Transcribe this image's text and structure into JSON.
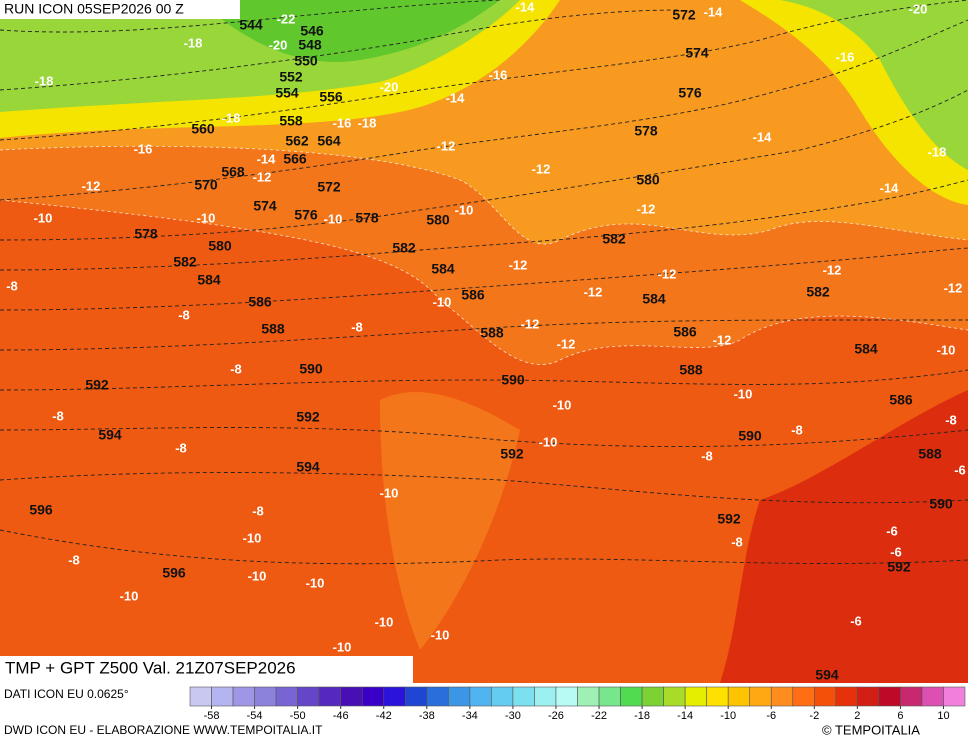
{
  "header": {
    "run": "RUN ICON 05SEP2026 00 Z",
    "title": "TMP + GPT Z500 Val. 21Z07SEP2026"
  },
  "footer": {
    "source": "DATI ICON EU 0.0625°",
    "credit": "DWD ICON EU - ELABORAZIONE WWW.TEMPOITALIA.IT",
    "copyright": "© TEMPOITALIA"
  },
  "map": {
    "geopotential_labels": [
      544,
      546,
      548,
      550,
      552,
      554,
      556,
      558,
      560,
      562,
      564,
      566,
      568,
      570,
      572,
      572,
      574,
      574,
      576,
      576,
      578,
      578,
      578,
      580,
      580,
      580,
      582,
      582,
      582,
      582,
      584,
      584,
      584,
      584,
      586,
      586,
      586,
      586,
      588,
      588,
      588,
      588,
      590,
      590,
      590,
      590,
      592,
      592,
      592,
      592,
      592,
      594,
      594,
      594,
      596,
      596
    ],
    "temperature_labels": [
      -22,
      -20,
      -18,
      -18,
      -20,
      -18,
      -16,
      -18,
      -16,
      -14,
      -12,
      -12,
      -12,
      -10,
      -10,
      -10,
      -10,
      -12,
      -12,
      -12,
      -12,
      -12,
      -12,
      -12,
      -12,
      -12,
      -12,
      -8,
      -8,
      -8,
      -10,
      -8,
      -8,
      -8,
      -10,
      -10,
      -10,
      -10,
      -8,
      -8,
      -8,
      -6,
      -10,
      -8,
      -10,
      -8,
      -10,
      -10,
      -10,
      -8,
      -6,
      -6,
      -6,
      -10,
      -10,
      -10,
      -14,
      -14,
      -16,
      -14,
      -16,
      -14,
      -18,
      -14,
      -20
    ]
  },
  "colorbar": {
    "ticks": [
      -58,
      -54,
      -50,
      -46,
      -42,
      -38,
      -34,
      -30,
      -26,
      -22,
      -18,
      -14,
      -10,
      -6,
      -2,
      2,
      6,
      10
    ],
    "colors": [
      "#c8c8f0",
      "#b4b4f0",
      "#a096e6",
      "#8c82dc",
      "#7864d2",
      "#6446c8",
      "#5528be",
      "#4810b4",
      "#3a00c8",
      "#2a14dc",
      "#1e46d2",
      "#2a6edc",
      "#3c96e6",
      "#50b4f0",
      "#64ccf0",
      "#7ce0f0",
      "#9cf0f0",
      "#b8faf4",
      "#9ef0b4",
      "#78e68c",
      "#50dc50",
      "#7cd232",
      "#a8dc28",
      "#e6ee00",
      "#ffe100",
      "#ffc400",
      "#ffa814",
      "#ff8c1e",
      "#ff6e14",
      "#f5500a",
      "#e6320a",
      "#d21e14",
      "#be0a28",
      "#c8286e",
      "#dc50b4",
      "#f080dc"
    ]
  }
}
